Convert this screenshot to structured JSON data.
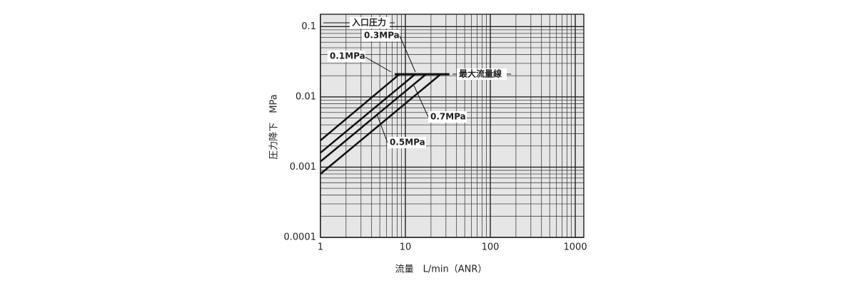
{
  "chart_data": {
    "type": "line",
    "x_label": "流量　L/min（ANR）",
    "y_label": "圧力降下　MPa",
    "legend_title": "入口圧力",
    "xscale": "log",
    "yscale": "log",
    "xlim": [
      1,
      1260
    ],
    "ylim": [
      0.0001,
      0.15
    ],
    "xticks": [
      1,
      10,
      100,
      1000
    ],
    "yticks": [
      0.0001,
      0.001,
      0.01,
      0.1
    ],
    "grid": true,
    "minor_grid": true,
    "series": [
      {
        "name": "0.1MPa",
        "color": "#111111",
        "x": [
          1,
          8.5
        ],
        "values": [
          0.0024,
          0.021
        ]
      },
      {
        "name": "0.3MPa",
        "color": "#111111",
        "x": [
          1,
          13
        ],
        "values": [
          0.0016,
          0.021
        ]
      },
      {
        "name": "0.5MPa",
        "color": "#111111",
        "x": [
          1,
          17.5
        ],
        "values": [
          0.0012,
          0.021
        ]
      },
      {
        "name": "0.7MPa",
        "color": "#111111",
        "x": [
          1,
          26
        ],
        "values": [
          0.0008,
          0.021
        ]
      }
    ],
    "max_flow_line": {
      "label": "最大流量線",
      "x": [
        7.5,
        33
      ],
      "values": [
        0.021,
        0.021
      ]
    }
  }
}
